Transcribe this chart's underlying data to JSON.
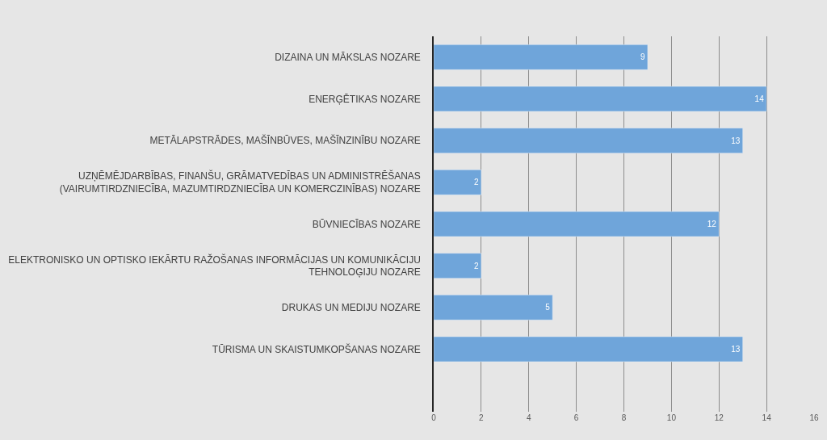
{
  "chart_data": {
    "type": "bar",
    "orientation": "horizontal",
    "categories": [
      "DIZAINA UN MĀKSLAS NOZARE",
      "ENERĢĒTIKAS NOZARE",
      "METĀLAPSTRĀDES, MAŠĪNBŪVES, MAŠĪNZINĪBU NOZARE",
      "UZŅĒMĒJDARBĪBAS, FINANŠU, GRĀMATVEDĪBAS UN ADMINISTRĒŠANAS (VAIRUMTIRDZNIECĪBA, MAZUMTIRDZNIECĪBA UN KOMERCZINĪBAS) NOZARE",
      "BŪVNIECĪBAS NOZARE",
      "ELEKTRONISKO UN OPTISKO IEKĀRTU RAŽOŠANAS INFORMĀCIJAS UN KOMUNIKĀCIJU TEHNOLOĢIJU NOZARE",
      "DRUKAS UN MEDIJU NOZARE",
      "TŪRISMA UN SKAISTUMKOPŠANAS NOZARE",
      null
    ],
    "values": [
      9,
      14,
      13,
      2,
      12,
      2,
      5,
      13,
      null
    ],
    "color": "#6fa5da",
    "xlim": [
      0,
      16
    ],
    "xticks": [
      0,
      2,
      4,
      6,
      8,
      10,
      12,
      14,
      16
    ],
    "grid": "x",
    "data_labels": true,
    "legend": false
  }
}
